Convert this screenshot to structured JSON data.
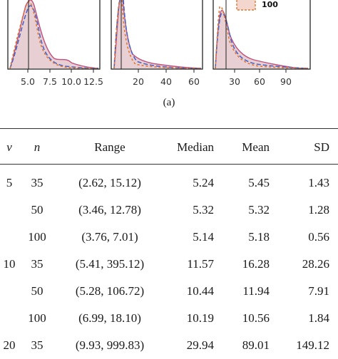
{
  "figure": {
    "panel_xticks": [
      [
        "5.0",
        "7.5",
        "10.0",
        "12.5"
      ],
      [
        "20",
        "40",
        "60"
      ],
      [
        "30",
        "60",
        "90"
      ]
    ],
    "legend_entry": "100",
    "caption": "(a)",
    "colors": {
      "red_density": "#c0507a",
      "blue_density": "#4a64c8",
      "orange_density": "#e07830",
      "fill": "#e8cfd4"
    }
  },
  "table": {
    "headers": [
      "ν",
      "n",
      "Range",
      "Median",
      "Mean",
      "SD"
    ],
    "rows": [
      [
        "5",
        "35",
        "(2.62, 15.12)",
        "5.24",
        "5.45",
        "1.43"
      ],
      [
        "",
        "50",
        "(3.46, 12.78)",
        "5.32",
        "5.32",
        "1.28"
      ],
      [
        "",
        "100",
        "(3.76, 7.01)",
        "5.14",
        "5.18",
        "0.56"
      ],
      [
        "10",
        "35",
        "(5.41, 395.12)",
        "11.57",
        "16.28",
        "28.26"
      ],
      [
        "",
        "50",
        "(5.28, 106.72)",
        "10.44",
        "11.94",
        "7.91"
      ],
      [
        "",
        "100",
        "(6.99, 18.10)",
        "10.19",
        "10.56",
        "1.84"
      ],
      [
        "20",
        "35",
        "(9.93, 999.83)",
        "29.94",
        "89.01",
        "149.12"
      ]
    ]
  }
}
